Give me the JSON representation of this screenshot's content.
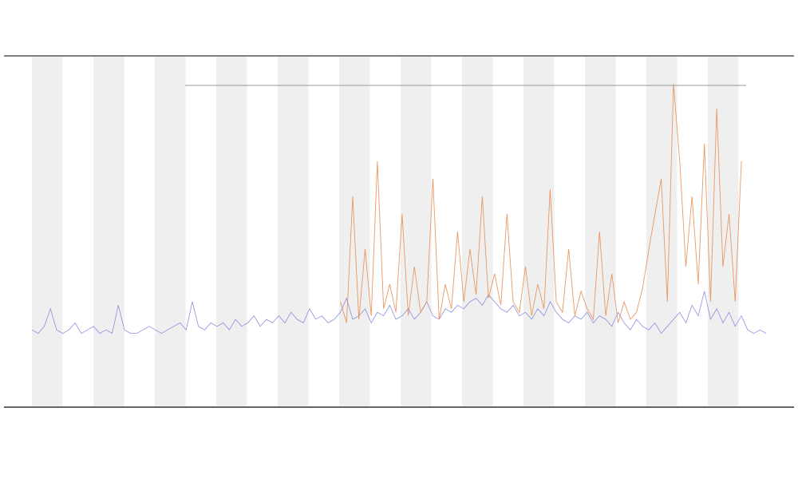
{
  "chart_data": {
    "type": "line",
    "ylim": [
      0,
      100
    ],
    "series": [
      {
        "color": "#7b7bdb",
        "values": [
          22,
          21,
          23,
          28,
          22,
          21,
          22,
          24,
          21,
          22,
          23,
          21,
          22,
          21,
          29,
          22,
          21,
          21,
          22,
          23,
          22,
          21,
          22,
          23,
          24,
          22,
          30,
          23,
          22,
          24,
          23,
          24,
          22,
          25,
          23,
          24,
          26,
          23,
          25,
          24,
          26,
          24,
          27,
          25,
          24,
          28,
          25,
          26,
          24,
          25,
          27,
          31,
          25,
          26,
          28,
          24,
          27,
          26,
          29,
          25,
          26,
          28,
          25,
          27,
          30,
          26,
          25,
          28,
          27,
          29,
          28,
          30,
          31,
          29,
          32,
          30,
          28,
          27,
          29,
          26,
          27,
          25,
          28,
          26,
          30,
          27,
          25,
          24,
          26,
          25,
          27,
          24,
          26,
          25,
          23,
          27,
          24,
          22,
          25,
          23,
          22,
          24,
          21,
          23,
          25,
          27,
          24,
          29,
          26,
          33,
          25,
          28,
          24,
          27,
          23,
          26,
          22,
          21,
          22,
          21
        ]
      },
      {
        "color": "#e8874a",
        "values": [
          null,
          null,
          null,
          null,
          null,
          null,
          null,
          null,
          null,
          null,
          null,
          null,
          null,
          null,
          null,
          null,
          null,
          null,
          null,
          null,
          null,
          null,
          null,
          null,
          null,
          null,
          null,
          null,
          null,
          null,
          null,
          null,
          null,
          null,
          null,
          null,
          null,
          null,
          null,
          null,
          null,
          null,
          null,
          null,
          null,
          null,
          null,
          null,
          null,
          null,
          30,
          24,
          60,
          25,
          45,
          26,
          70,
          28,
          35,
          27,
          55,
          26,
          40,
          27,
          30,
          65,
          25,
          35,
          28,
          50,
          30,
          45,
          32,
          60,
          31,
          38,
          29,
          55,
          30,
          27,
          40,
          26,
          35,
          28,
          62,
          30,
          27,
          45,
          26,
          33,
          28,
          25,
          50,
          26,
          38,
          24,
          30,
          25,
          27,
          34,
          45,
          55,
          65,
          30,
          92,
          70,
          40,
          60,
          35,
          75,
          30,
          85,
          40,
          55,
          30,
          70,
          null,
          null,
          null,
          null
        ]
      }
    ]
  }
}
